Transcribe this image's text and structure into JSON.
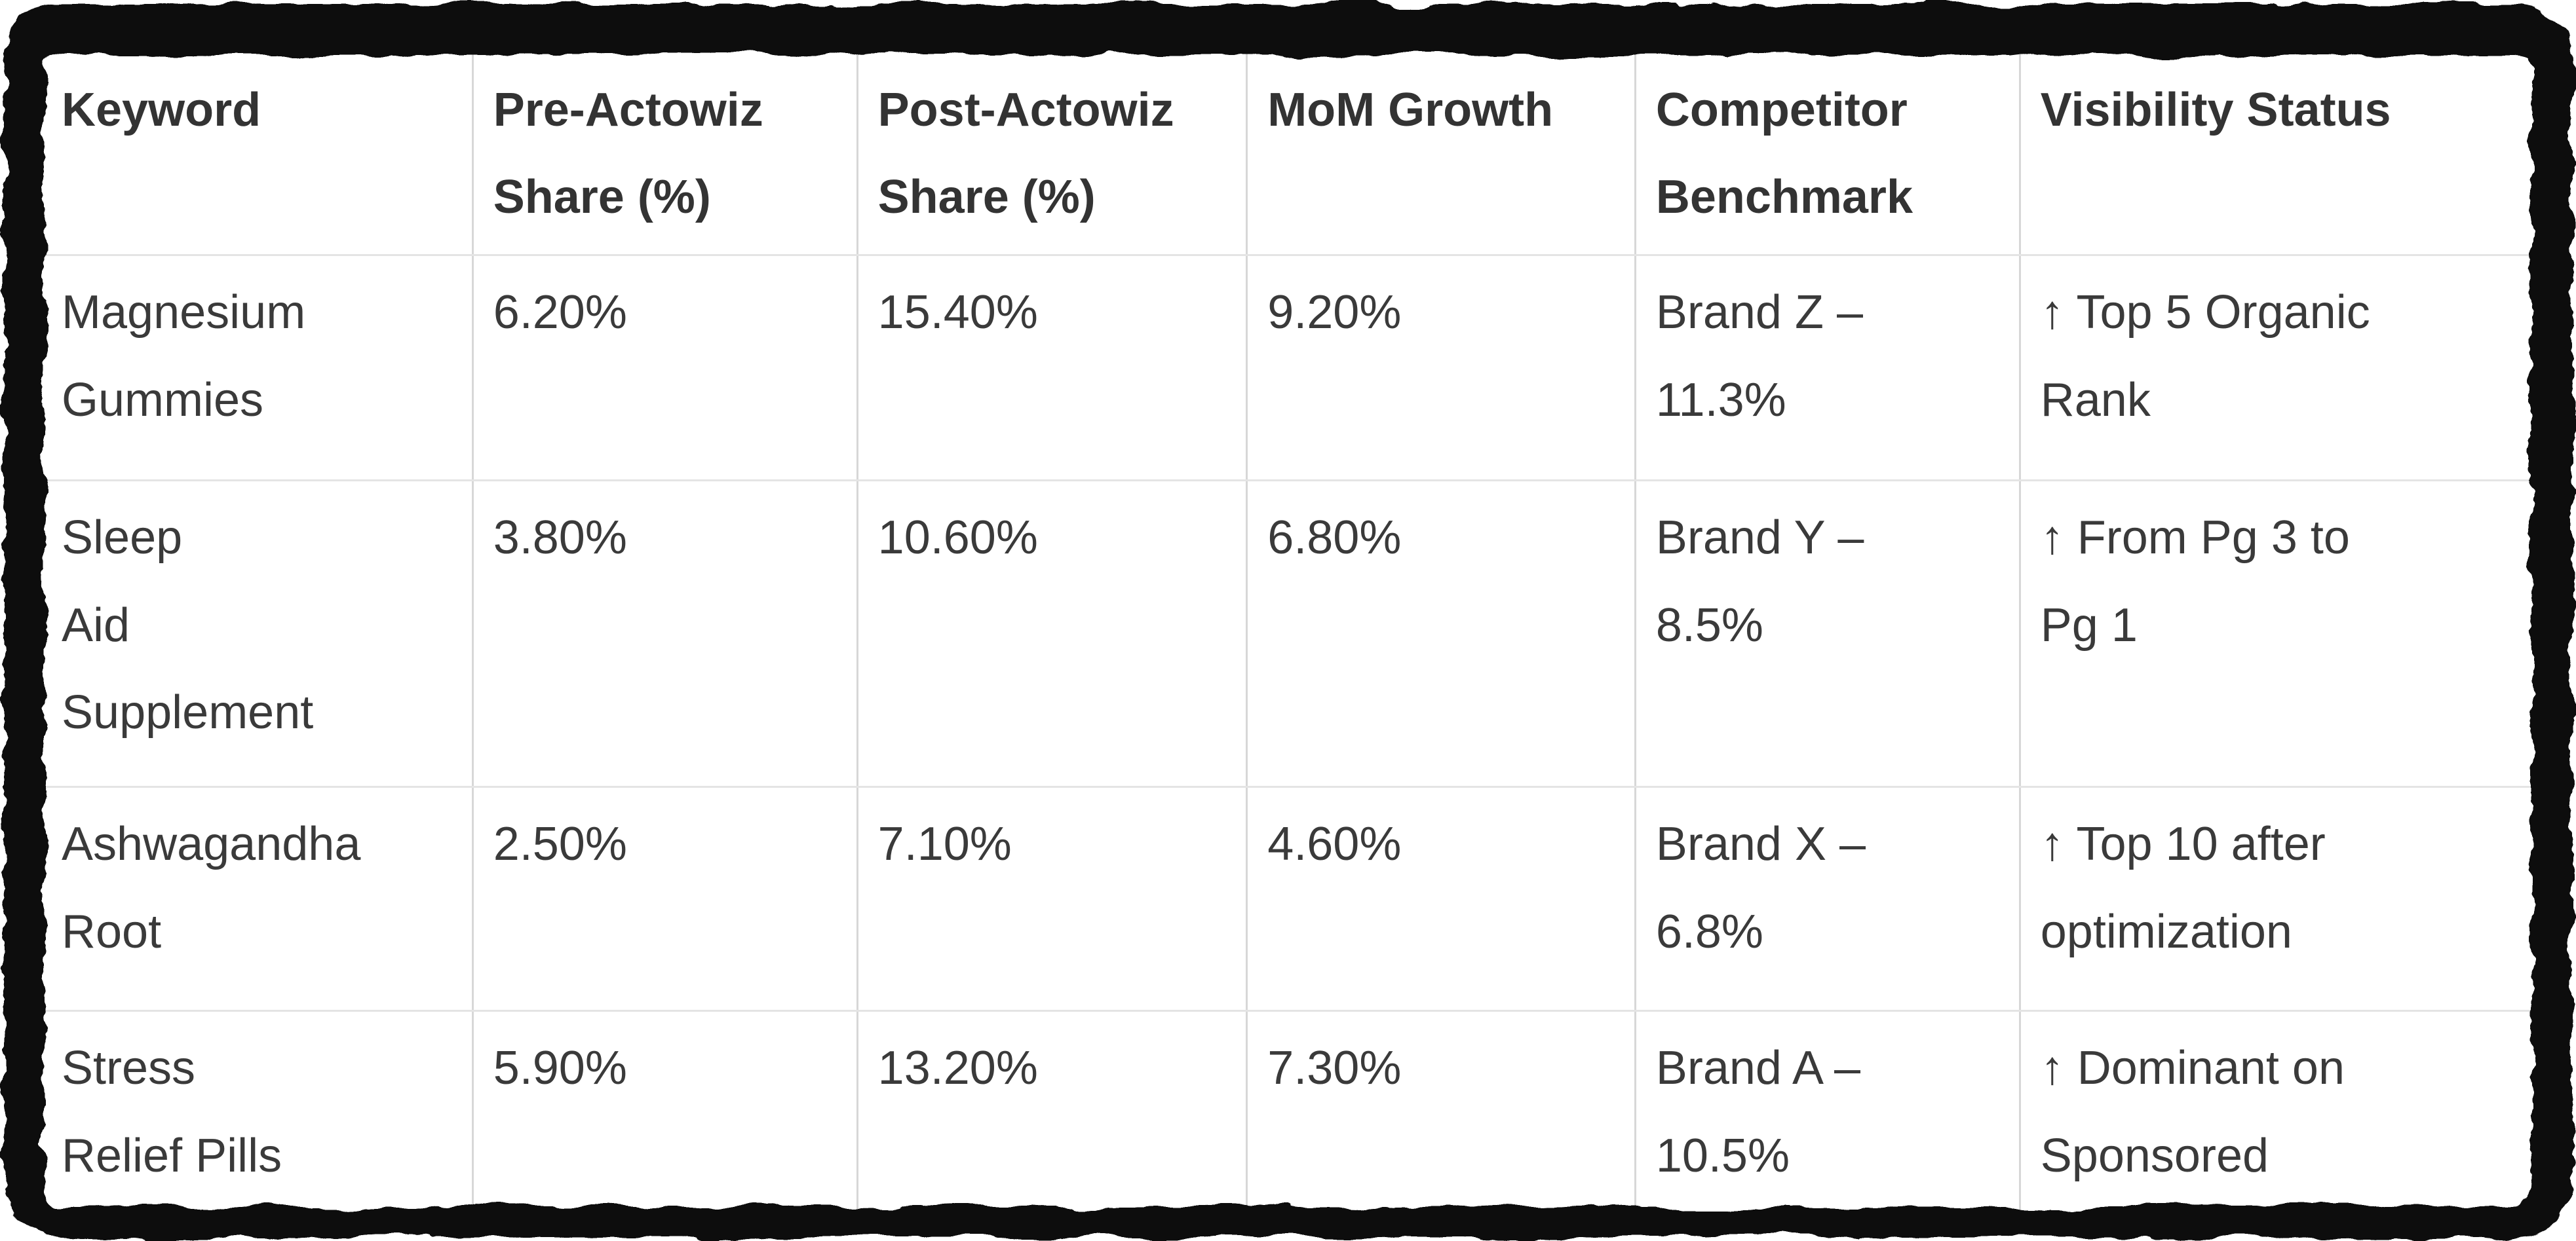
{
  "figure": {
    "description": "Keyword share-of-voice table, pre vs post Actowiz, with competitor benchmarks and visibility status"
  },
  "colors": {
    "frame": "#0a0a0a",
    "background": "#ffffff",
    "text": "#3a3a3a",
    "header_text": "#333333",
    "grid_vertical": "#d7d7d7",
    "grid_horizontal": "#e4e4e4"
  },
  "icons": {
    "up_arrow": "↑"
  },
  "table": {
    "headers": [
      "Keyword",
      "Pre-Actowiz\nShare (%)",
      "Post-Actowiz\nShare (%)",
      "MoM Growth",
      "Competitor\nBenchmark",
      "Visibility Status"
    ],
    "rows": [
      [
        "Magnesium\nGummies",
        "6.20%",
        "15.40%",
        "9.20%",
        "Brand Z –\n11.3%",
        "↑ Top 5 Organic\nRank"
      ],
      [
        "Sleep\nAid\nSupplement",
        "3.80%",
        "10.60%",
        "6.80%",
        "Brand Y –\n8.5%",
        "↑ From Pg 3 to\nPg 1"
      ],
      [
        "Ashwagandha\nRoot",
        "2.50%",
        "7.10%",
        "4.60%",
        "Brand X –\n6.8%",
        "↑ Top 10 after\noptimization"
      ],
      [
        "Stress\nRelief Pills",
        "5.90%",
        "13.20%",
        "7.30%",
        "Brand A –\n10.5%",
        "↑ Dominant on\nSponsored"
      ]
    ]
  },
  "chart_data": {
    "type": "table",
    "title": "",
    "columns": [
      "Keyword",
      "Pre-Actowiz Share (%)",
      "Post-Actowiz Share (%)",
      "MoM Growth",
      "Competitor Benchmark",
      "Visibility Status"
    ],
    "rows": [
      [
        "Magnesium Gummies",
        "6.20%",
        "15.40%",
        "9.20%",
        "Brand Z – 11.3%",
        "↑ Top 5 Organic Rank"
      ],
      [
        "Sleep Aid Supplement",
        "3.80%",
        "10.60%",
        "6.80%",
        "Brand Y – 8.5%",
        "↑ From Pg 3 to Pg 1"
      ],
      [
        "Ashwagandha Root",
        "2.50%",
        "7.10%",
        "4.60%",
        "Brand X – 6.8%",
        "↑ Top 10 after optimization"
      ],
      [
        "Stress Relief Pills",
        "5.90%",
        "13.20%",
        "7.30%",
        "Brand A – 10.5%",
        "↑ Dominant on Sponsored"
      ]
    ],
    "numeric_series": {
      "categories": [
        "Magnesium Gummies",
        "Sleep Aid Supplement",
        "Ashwagandha Root",
        "Stress Relief Pills"
      ],
      "series": [
        {
          "name": "Pre-Actowiz Share (%)",
          "values": [
            6.2,
            3.8,
            2.5,
            5.9
          ]
        },
        {
          "name": "Post-Actowiz Share (%)",
          "values": [
            15.4,
            10.6,
            7.1,
            13.2
          ]
        },
        {
          "name": "MoM Growth (%)",
          "values": [
            9.2,
            6.8,
            4.6,
            7.3
          ]
        },
        {
          "name": "Competitor Benchmark (%)",
          "values": [
            11.3,
            8.5,
            6.8,
            10.5
          ]
        }
      ]
    }
  }
}
